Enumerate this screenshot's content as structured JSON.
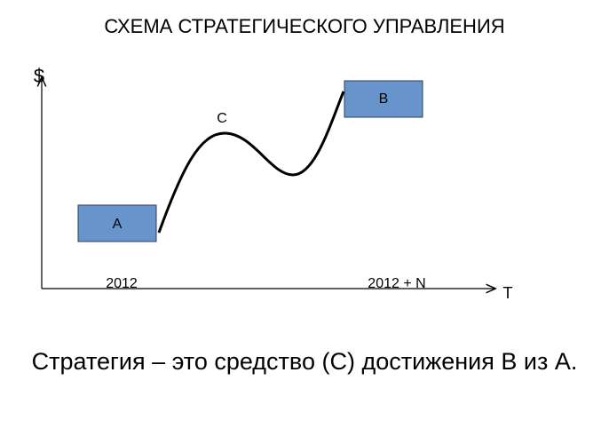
{
  "header": {
    "title": "СХЕМА СТРАТЕГИЧЕСКОГО УПРАВЛЕНИЯ"
  },
  "diagram": {
    "y_axis_label": "$",
    "x_axis_label": "T",
    "start_box": "A",
    "end_box": "B",
    "path_label": "C",
    "start_label": "2012",
    "end_label": "2012 + N"
  },
  "caption": "Стратегия – это средство (С) достижения В из А."
}
